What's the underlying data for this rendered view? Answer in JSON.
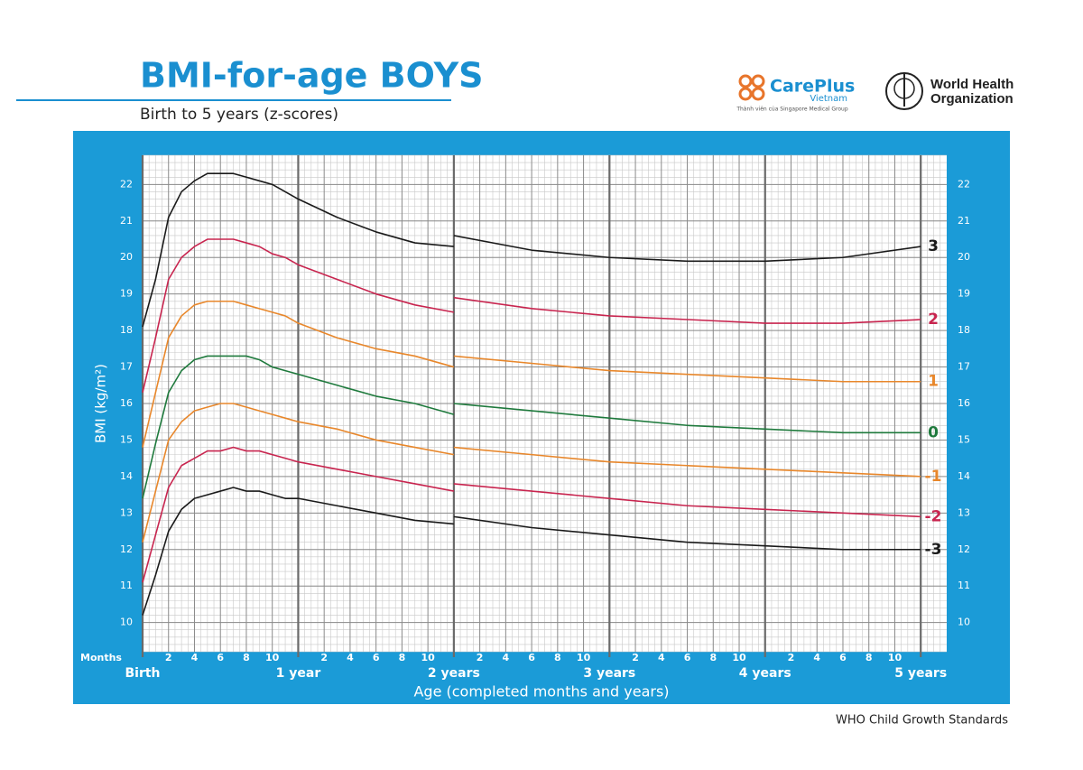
{
  "header": {
    "title": "BMI-for-age BOYS",
    "subtitle": "Birth to 5 years (z-scores)"
  },
  "logos": {
    "careplus_name": "CarePlus",
    "careplus_country": "Vietnam",
    "careplus_tagline": "Thành viên của Singapore Medical Group",
    "who_line1": "World Health",
    "who_line2": "Organization"
  },
  "footer": "WHO Child Growth Standards",
  "chart_data": {
    "type": "line",
    "y_label": "BMI (kg/m²)",
    "x_label": "Age (completed months and years)",
    "x_unit_label": "Months",
    "xlim": [
      0,
      62
    ],
    "ylim": [
      9.2,
      22.8
    ],
    "yticks": [
      10,
      11,
      12,
      13,
      14,
      15,
      16,
      17,
      18,
      19,
      20,
      21,
      22
    ],
    "xticks": [
      {
        "value": 2,
        "label": "2"
      },
      {
        "value": 4,
        "label": "4"
      },
      {
        "value": 6,
        "label": "6"
      },
      {
        "value": 8,
        "label": "8"
      },
      {
        "value": 10,
        "label": "10"
      },
      {
        "value": 14,
        "label": "2"
      },
      {
        "value": 16,
        "label": "4"
      },
      {
        "value": 18,
        "label": "6"
      },
      {
        "value": 20,
        "label": "8"
      },
      {
        "value": 22,
        "label": "10"
      },
      {
        "value": 26,
        "label": "2"
      },
      {
        "value": 28,
        "label": "4"
      },
      {
        "value": 30,
        "label": "6"
      },
      {
        "value": 32,
        "label": "8"
      },
      {
        "value": 34,
        "label": "10"
      },
      {
        "value": 38,
        "label": "2"
      },
      {
        "value": 40,
        "label": "4"
      },
      {
        "value": 42,
        "label": "6"
      },
      {
        "value": 44,
        "label": "8"
      },
      {
        "value": 46,
        "label": "10"
      },
      {
        "value": 50,
        "label": "2"
      },
      {
        "value": 52,
        "label": "4"
      },
      {
        "value": 54,
        "label": "6"
      },
      {
        "value": 56,
        "label": "8"
      },
      {
        "value": 58,
        "label": "10"
      }
    ],
    "xticks_major": [
      {
        "value": 0,
        "label": "Birth"
      },
      {
        "value": 12,
        "label": "1 year"
      },
      {
        "value": 24,
        "label": "2 years"
      },
      {
        "value": 36,
        "label": "3 years"
      },
      {
        "value": 48,
        "label": "4 years"
      },
      {
        "value": 60,
        "label": "5 years"
      }
    ],
    "grid": true,
    "x": [
      0,
      1,
      2,
      3,
      4,
      5,
      6,
      7,
      8,
      9,
      10,
      11,
      12,
      15,
      18,
      21,
      24,
      24,
      24,
      30,
      36,
      42,
      48,
      54,
      60
    ],
    "series": [
      {
        "name": "3",
        "color": "#1a1a1a",
        "values": [
          18.1,
          19.4,
          21.1,
          21.8,
          22.1,
          22.3,
          22.3,
          22.3,
          22.2,
          22.1,
          22.0,
          21.8,
          21.6,
          21.1,
          20.7,
          20.4,
          20.3,
          null,
          20.6,
          20.2,
          20.0,
          19.9,
          19.9,
          20.0,
          20.3
        ]
      },
      {
        "name": "2",
        "color": "#c8254f",
        "values": [
          16.3,
          17.8,
          19.4,
          20.0,
          20.3,
          20.5,
          20.5,
          20.5,
          20.4,
          20.3,
          20.1,
          20.0,
          19.8,
          19.4,
          19.0,
          18.7,
          18.5,
          null,
          18.9,
          18.6,
          18.4,
          18.3,
          18.2,
          18.2,
          18.3
        ]
      },
      {
        "name": "1",
        "color": "#e8872b",
        "values": [
          14.8,
          16.3,
          17.8,
          18.4,
          18.7,
          18.8,
          18.8,
          18.8,
          18.7,
          18.6,
          18.5,
          18.4,
          18.2,
          17.8,
          17.5,
          17.3,
          17.0,
          null,
          17.3,
          17.1,
          16.9,
          16.8,
          16.7,
          16.6,
          16.6
        ]
      },
      {
        "name": "0",
        "color": "#1f7a3d",
        "values": [
          13.4,
          14.9,
          16.3,
          16.9,
          17.2,
          17.3,
          17.3,
          17.3,
          17.3,
          17.2,
          17.0,
          16.9,
          16.8,
          16.5,
          16.2,
          16.0,
          15.7,
          null,
          16.0,
          15.8,
          15.6,
          15.4,
          15.3,
          15.2,
          15.2
        ]
      },
      {
        "name": "-1",
        "color": "#e8872b",
        "values": [
          12.2,
          13.6,
          15.0,
          15.5,
          15.8,
          15.9,
          16.0,
          16.0,
          15.9,
          15.8,
          15.7,
          15.6,
          15.5,
          15.3,
          15.0,
          14.8,
          14.6,
          null,
          14.8,
          14.6,
          14.4,
          14.3,
          14.2,
          14.1,
          14.0
        ]
      },
      {
        "name": "-2",
        "color": "#c8254f",
        "values": [
          11.1,
          12.4,
          13.7,
          14.3,
          14.5,
          14.7,
          14.7,
          14.8,
          14.7,
          14.7,
          14.6,
          14.5,
          14.4,
          14.2,
          14.0,
          13.8,
          13.6,
          null,
          13.8,
          13.6,
          13.4,
          13.2,
          13.1,
          13.0,
          12.9
        ]
      },
      {
        "name": "-3",
        "color": "#1a1a1a",
        "values": [
          10.2,
          11.3,
          12.5,
          13.1,
          13.4,
          13.5,
          13.6,
          13.7,
          13.6,
          13.6,
          13.5,
          13.4,
          13.4,
          13.2,
          13.0,
          12.8,
          12.7,
          null,
          12.9,
          12.6,
          12.4,
          12.2,
          12.1,
          12.0,
          12.0
        ]
      }
    ]
  }
}
